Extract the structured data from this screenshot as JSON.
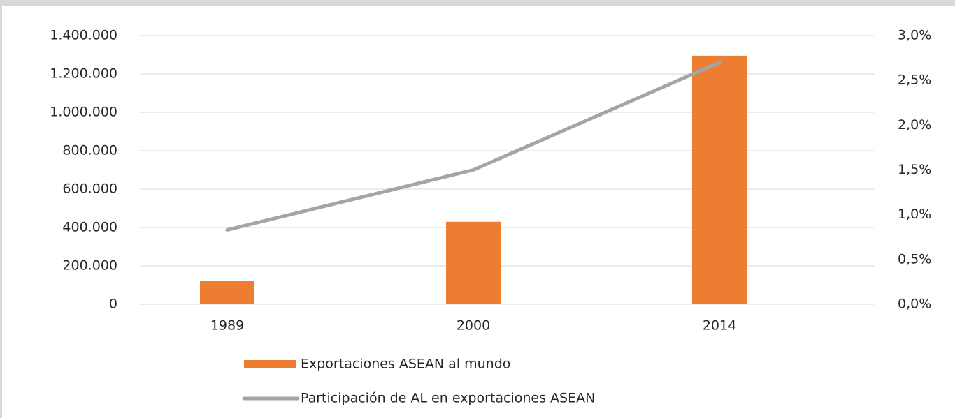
{
  "chart_data": {
    "type": "bar_line",
    "categories": [
      "1989",
      "2000",
      "2014"
    ],
    "series": [
      {
        "name": "Exportaciones ASEAN al mundo",
        "color": "#ed7d31",
        "type": "bar",
        "values": [
          123000,
          430000,
          1295000
        ]
      },
      {
        "name": "Participación de AL en exportaciones ASEAN",
        "color": "#a5a5a5",
        "type": "line",
        "axis": "y2",
        "values": [
          0.83,
          1.5,
          2.7
        ]
      }
    ],
    "ylim": [
      0,
      1400000
    ],
    "yticks": [
      0,
      {
        "value": 200000,
        "label": "200.000"
      },
      {
        "value": 400000,
        "label": "400.000"
      },
      {
        "value": 600000,
        "label": "600.000"
      },
      {
        "value": 800000,
        "label": "800.000"
      },
      {
        "value": 1000000,
        "label": "1.000.000"
      },
      {
        "value": 1200000,
        "label": "1.200.000"
      },
      {
        "value": 1400000,
        "label": "1.400.000"
      }
    ],
    "y2lim": [
      0,
      3
    ],
    "y2ticks": [
      {
        "value": 0,
        "label": "0,0%"
      },
      {
        "value": 0.5,
        "label": "0,5%"
      },
      {
        "value": 1,
        "label": "1,0%"
      },
      {
        "value": 1.5,
        "label": "1,5%"
      },
      {
        "value": 2,
        "label": "2,0%"
      },
      {
        "value": 2.5,
        "label": "2,5%"
      },
      {
        "value": 3,
        "label": "3,0%"
      }
    ],
    "grid": true,
    "legend": "bottom"
  }
}
